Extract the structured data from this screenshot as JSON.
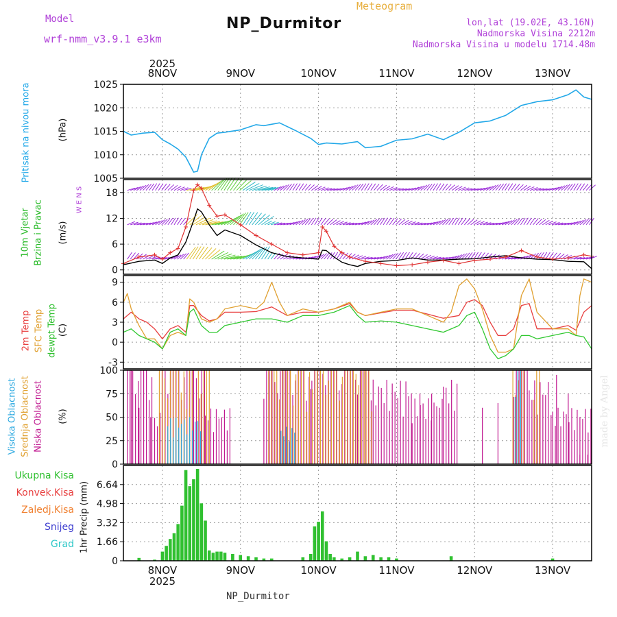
{
  "header": {
    "model_label": "Model",
    "model_name": "wrf-nmm_v3.9.1 e3km",
    "chart_type": "Meteogram",
    "station": "NP_Durmitor",
    "coords": "lon,lat (19.02E, 43.16N)",
    "elevation": "Nadmorska Visina 2212m",
    "model_elevation": "Nadmorska Visina u modelu 1714.48m"
  },
  "footer": {
    "station": "NP_Durmitor",
    "watermark": "made by Angel"
  },
  "colors": {
    "pressure": "#22a8e8",
    "wind": "#9a2ad8",
    "speed": "#000000",
    "gust": "#e03030",
    "temp": "#e84040",
    "sfc": "#e0a030",
    "dew": "#30c830",
    "high": "#2aa8e0",
    "mid": "#e0a030",
    "low": "#c01890",
    "precip": "#30c030"
  },
  "chart_data": [
    {
      "type": "line",
      "id": "pressure",
      "ylabel_left": "Pritisak na nivou mora",
      "units": "(hPa)",
      "ylim": [
        1005,
        1025
      ],
      "yticks": [
        "1005",
        "1010",
        "1015",
        "1020",
        "1025"
      ],
      "x_dates": [
        "8NOV",
        "9NOV",
        "10NOV",
        "11NOV",
        "12NOV",
        "13NOV"
      ],
      "x_top_year": "2025",
      "x_bottom_year": "2025",
      "x_day_range": [
        7.5,
        13.5
      ],
      "series": [
        {
          "name": "MSLP",
          "x": [
            7.5,
            7.6,
            7.75,
            7.9,
            8.0,
            8.1,
            8.2,
            8.3,
            8.4,
            8.45,
            8.5,
            8.6,
            8.7,
            8.8,
            9.0,
            9.2,
            9.3,
            9.5,
            9.7,
            9.9,
            10.0,
            10.1,
            10.3,
            10.5,
            10.6,
            10.8,
            11.0,
            11.2,
            11.4,
            11.6,
            11.8,
            12.0,
            12.2,
            12.4,
            12.6,
            12.8,
            13.0,
            13.2,
            13.3,
            13.4,
            13.5
          ],
          "values": [
            1015,
            1014.2,
            1014.6,
            1014.8,
            1013.2,
            1012.3,
            1011.2,
            1009.5,
            1006.3,
            1006.5,
            1010,
            1013.5,
            1014.6,
            1014.8,
            1015.3,
            1016.4,
            1016.2,
            1016.8,
            1015.2,
            1013.5,
            1012.2,
            1012.5,
            1012.3,
            1012.8,
            1011.5,
            1011.8,
            1013.1,
            1013.4,
            1014.4,
            1013.2,
            1014.8,
            1016.8,
            1017.2,
            1018.4,
            1020.5,
            1021.3,
            1021.7,
            1022.8,
            1023.8,
            1022.3,
            1021.8
          ]
        }
      ]
    },
    {
      "type": "line",
      "id": "wind",
      "ylabel_left1": "10m Vjetar",
      "ylabel_left2": "Brzina i Pravac",
      "units": "(m/s)",
      "compass": "W  E  N  S",
      "ylim": [
        -1,
        21
      ],
      "yticks": [
        "0",
        "6",
        "12",
        "18"
      ],
      "series": [
        {
          "name": "speed",
          "x": [
            7.5,
            7.7,
            7.9,
            8.0,
            8.1,
            8.2,
            8.3,
            8.4,
            8.45,
            8.5,
            8.6,
            8.7,
            8.8,
            9.0,
            9.2,
            9.4,
            9.6,
            9.8,
            10.0,
            10.05,
            10.1,
            10.2,
            10.3,
            10.4,
            10.5,
            10.6,
            10.8,
            11.0,
            11.2,
            11.4,
            11.6,
            11.8,
            12.0,
            12.2,
            12.4,
            12.6,
            12.8,
            13.0,
            13.2,
            13.4,
            13.5
          ],
          "values": [
            1.2,
            2.0,
            2.3,
            1.5,
            2.8,
            3.5,
            6.5,
            11.5,
            14.2,
            13.5,
            10.5,
            8.0,
            9.3,
            8.0,
            5.8,
            4.0,
            3.1,
            2.8,
            2.5,
            4.6,
            4.5,
            3.0,
            1.8,
            1.2,
            0.8,
            1.5,
            2.0,
            2.2,
            2.8,
            2.3,
            2.3,
            2.5,
            2.6,
            3.0,
            3.3,
            2.8,
            2.5,
            2.4,
            2.0,
            1.9,
            0.3
          ]
        },
        {
          "name": "gust",
          "x": [
            7.5,
            7.7,
            7.9,
            8.0,
            8.1,
            8.2,
            8.3,
            8.4,
            8.45,
            8.5,
            8.6,
            8.7,
            8.8,
            9.0,
            9.2,
            9.4,
            9.6,
            9.8,
            10.0,
            10.05,
            10.1,
            10.2,
            10.3,
            10.4,
            10.6,
            10.8,
            11.0,
            11.2,
            11.4,
            11.6,
            11.8,
            12.0,
            12.2,
            12.4,
            12.6,
            12.8,
            13.0,
            13.2,
            13.4,
            13.5
          ],
          "values": [
            1.5,
            3.0,
            3.5,
            2.5,
            4.0,
            5.0,
            10.0,
            18.5,
            19.8,
            19.0,
            15.0,
            12.5,
            12.8,
            10.5,
            8.0,
            6.0,
            4.0,
            3.5,
            4.0,
            10.0,
            9.0,
            5.5,
            4.0,
            3.0,
            2.0,
            1.5,
            1.0,
            1.2,
            1.8,
            2.2,
            1.5,
            2.2,
            2.5,
            3.0,
            4.5,
            3.0,
            2.5,
            2.8,
            3.5,
            3.2
          ]
        }
      ]
    },
    {
      "type": "line",
      "id": "temperature",
      "ylabel_left1": "2m Temp",
      "ylabel_left2": "SFC Temp",
      "ylabel_left3": "dewpt Temp",
      "units": "(C)",
      "ylim": [
        -4,
        10
      ],
      "yticks": [
        "-3",
        "0",
        "3",
        "6",
        "9"
      ],
      "series": [
        {
          "name": "2m Temp",
          "x": [
            7.5,
            7.6,
            7.7,
            7.8,
            7.9,
            8.0,
            8.1,
            8.2,
            8.3,
            8.35,
            8.4,
            8.5,
            8.6,
            8.7,
            8.8,
            9.0,
            9.2,
            9.4,
            9.6,
            9.8,
            10.0,
            10.2,
            10.4,
            10.5,
            10.6,
            10.8,
            11.0,
            11.2,
            11.4,
            11.6,
            11.8,
            11.9,
            12.0,
            12.1,
            12.2,
            12.3,
            12.4,
            12.5,
            12.6,
            12.7,
            12.8,
            13.0,
            13.2,
            13.3,
            13.4,
            13.5
          ],
          "values": [
            3.5,
            4.5,
            3.5,
            3.0,
            2.0,
            0.5,
            2.0,
            2.5,
            1.5,
            5.5,
            5.5,
            4.0,
            3.2,
            3.5,
            4.5,
            4.5,
            4.6,
            5.3,
            4.0,
            4.5,
            4.5,
            5.0,
            5.8,
            4.5,
            4.0,
            4.4,
            4.8,
            4.8,
            4.2,
            3.6,
            4.0,
            6.0,
            6.4,
            5.5,
            3.0,
            1.0,
            1.0,
            2.0,
            5.5,
            5.8,
            2.0,
            2.0,
            2.5,
            1.8,
            4.5,
            5.5
          ]
        },
        {
          "name": "SFC Temp",
          "x": [
            7.5,
            7.55,
            7.6,
            7.7,
            7.8,
            7.9,
            8.0,
            8.1,
            8.2,
            8.3,
            8.35,
            8.4,
            8.5,
            8.6,
            8.7,
            8.8,
            9.0,
            9.2,
            9.3,
            9.4,
            9.5,
            9.6,
            9.8,
            10.0,
            10.2,
            10.4,
            10.5,
            10.6,
            10.8,
            11.0,
            11.2,
            11.4,
            11.6,
            11.7,
            11.8,
            11.9,
            12.0,
            12.1,
            12.2,
            12.3,
            12.4,
            12.5,
            12.6,
            12.7,
            12.8,
            13.0,
            13.2,
            13.3,
            13.35,
            13.4,
            13.5
          ],
          "values": [
            6.0,
            7.3,
            5.0,
            2.5,
            0.5,
            0.5,
            -1.0,
            1.0,
            1.5,
            1.0,
            6.5,
            6.0,
            3.5,
            3.0,
            3.5,
            5.0,
            5.5,
            5.0,
            6.0,
            9.0,
            6.0,
            4.0,
            5.0,
            4.5,
            5.0,
            6.0,
            4.5,
            4.0,
            4.5,
            5.0,
            5.0,
            4.0,
            3.0,
            4.5,
            8.5,
            9.5,
            8.0,
            5.0,
            1.0,
            -1.5,
            -1.5,
            -1.0,
            7.0,
            9.5,
            4.5,
            2.0,
            2.0,
            1.0,
            7.0,
            9.5,
            9.0
          ]
        },
        {
          "name": "dewpt Temp",
          "x": [
            7.5,
            7.6,
            7.7,
            7.8,
            7.9,
            8.0,
            8.1,
            8.2,
            8.3,
            8.35,
            8.4,
            8.5,
            8.6,
            8.7,
            8.8,
            9.0,
            9.2,
            9.4,
            9.6,
            9.8,
            10.0,
            10.2,
            10.4,
            10.5,
            10.6,
            10.8,
            11.0,
            11.2,
            11.4,
            11.6,
            11.8,
            11.9,
            12.0,
            12.1,
            12.2,
            12.3,
            12.4,
            12.5,
            12.6,
            12.7,
            12.8,
            13.0,
            13.2,
            13.3,
            13.4,
            13.5
          ],
          "values": [
            1.5,
            2.0,
            1.0,
            0.5,
            0,
            -1.0,
            1.5,
            2.0,
            1.0,
            4.5,
            5.0,
            2.5,
            1.5,
            1.5,
            2.5,
            3.0,
            3.5,
            3.5,
            3.0,
            4.0,
            4.0,
            4.5,
            5.5,
            4.0,
            3.0,
            3.2,
            3.0,
            2.5,
            2.0,
            1.5,
            2.5,
            4.0,
            4.5,
            2.0,
            -1.0,
            -2.5,
            -2.0,
            -1.0,
            1.0,
            1.0,
            0.5,
            1.0,
            1.5,
            1.0,
            0.8,
            -1.0
          ]
        }
      ]
    },
    {
      "type": "bar",
      "id": "clouds",
      "ylabel_left1": "Visoka Oblacnost",
      "ylabel_left2": "Srednja Oblacnost",
      "ylabel_left3": "Niska Oblacnost",
      "units": "(%)",
      "ylim": [
        0,
        100
      ],
      "yticks": [
        "0",
        "25",
        "50",
        "75",
        "100"
      ],
      "segments": [
        {
          "name": "low",
          "ranges": [
            [
              7.55,
              7.9,
              100
            ],
            [
              7.9,
              8.0,
              55
            ],
            [
              8.0,
              8.4,
              100
            ],
            [
              8.4,
              8.55,
              100
            ],
            [
              8.55,
              8.9,
              60
            ],
            [
              9.3,
              9.6,
              100
            ],
            [
              9.6,
              9.95,
              100
            ],
            [
              9.95,
              10.5,
              100
            ],
            [
              10.5,
              10.7,
              100
            ],
            [
              10.7,
              11.2,
              90
            ],
            [
              11.2,
              11.6,
              70
            ],
            [
              11.6,
              11.8,
              90
            ],
            [
              12.5,
              12.7,
              100
            ],
            [
              12.7,
              13.0,
              90
            ],
            [
              13.0,
              13.5,
              60
            ]
          ]
        },
        {
          "name": "mid",
          "ranges": [
            [
              7.95,
              8.4,
              100
            ],
            [
              8.45,
              8.6,
              100
            ],
            [
              9.35,
              10.6,
              100
            ],
            [
              10.6,
              10.7,
              100
            ],
            [
              12.48,
              12.65,
              100
            ],
            [
              12.75,
              12.85,
              100
            ]
          ]
        },
        {
          "name": "high",
          "ranges": [
            [
              8.05,
              8.5,
              50
            ],
            [
              9.5,
              9.7,
              40
            ],
            [
              12.5,
              12.6,
              100
            ]
          ]
        }
      ]
    },
    {
      "type": "bar",
      "id": "precip",
      "legend": [
        "Ukupna Kisa",
        "Konvek.Kisa",
        "Zaledj.Kisa",
        "Snijeg",
        "Grad"
      ],
      "ylabel": "1hr Precip (mm)",
      "ylim": [
        0,
        8.3
      ],
      "yticks": [
        "0",
        "1.66",
        "3.32",
        "4.98",
        "6.64"
      ],
      "x": [
        7.7,
        7.9,
        8.0,
        8.05,
        8.1,
        8.15,
        8.2,
        8.25,
        8.3,
        8.35,
        8.4,
        8.45,
        8.5,
        8.55,
        8.6,
        8.65,
        8.7,
        8.75,
        8.8,
        8.9,
        9.0,
        9.1,
        9.2,
        9.3,
        9.4,
        9.8,
        9.9,
        9.95,
        10.0,
        10.05,
        10.1,
        10.15,
        10.2,
        10.3,
        10.4,
        10.5,
        10.6,
        10.7,
        10.8,
        10.9,
        11.0,
        11.7,
        13.0
      ],
      "values": [
        0.25,
        0.1,
        0.8,
        1.3,
        1.9,
        2.4,
        3.2,
        4.8,
        7.9,
        6.5,
        7.1,
        8.0,
        5.0,
        3.5,
        0.9,
        0.7,
        0.8,
        0.8,
        0.7,
        0.6,
        0.5,
        0.4,
        0.3,
        0.2,
        0.2,
        0.3,
        0.6,
        3.0,
        3.4,
        4.3,
        1.7,
        0.6,
        0.3,
        0.2,
        0.3,
        0.8,
        0.4,
        0.5,
        0.3,
        0.3,
        0.2,
        0.4,
        0.2
      ]
    }
  ]
}
